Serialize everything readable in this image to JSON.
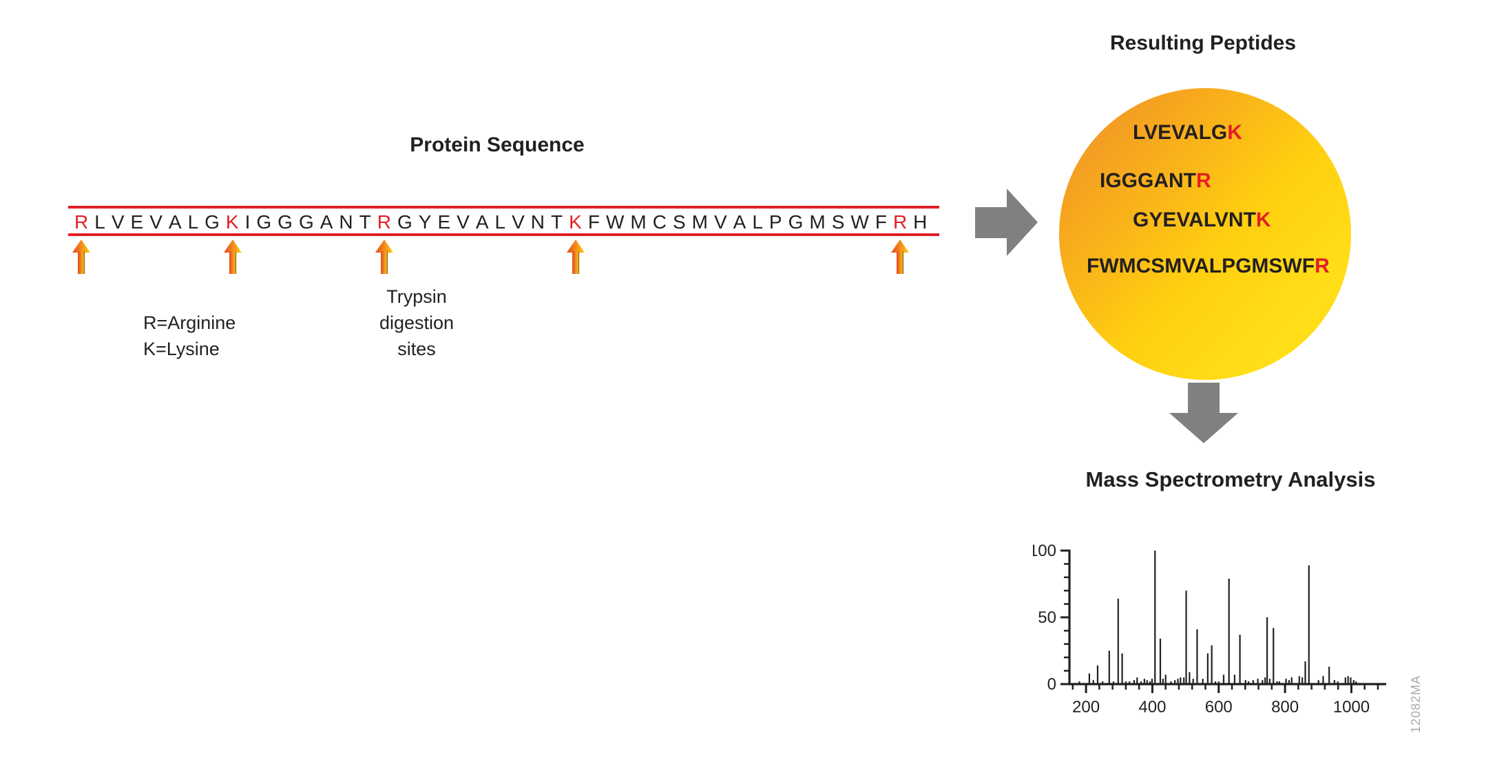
{
  "protein_section": {
    "title": "Protein Sequence",
    "sequence": "RLVEVALGKIGGGANTRGYEVALVNTKFWMCSMVALPGMSWFRH",
    "cleavage_positions": [
      0,
      8,
      16,
      26,
      42
    ],
    "legend": {
      "line1": "R=Arginine",
      "line2": "K=Lysine"
    },
    "trypsin_label": {
      "line1": "Trypsin",
      "line2": "digestion",
      "line3": "sites"
    }
  },
  "peptides_section": {
    "title": "Resulting Peptides",
    "peptides": [
      {
        "body": "LVEVALG",
        "tail": "K"
      },
      {
        "body": "IGGGANT",
        "tail": "R"
      },
      {
        "body": "GYEVALVNT",
        "tail": "K"
      },
      {
        "body": "FWMCSMVALPGMSWF",
        "tail": "R"
      }
    ]
  },
  "mass_spec_section": {
    "title": "Mass Spectrometry Analysis",
    "watermark": "12082MA"
  },
  "colors": {
    "red": "#E31E25",
    "text_black": "#231F20",
    "gray_arrow": "#808080",
    "circle_orange": "#EC8D2F",
    "circle_yellow": "#FFDE17",
    "cleave_arrow_dark": "#E2491F",
    "cleave_arrow_light": "#FFD008",
    "watermark_gray": "#A8AAAD"
  },
  "chart_data": {
    "type": "bar",
    "title": "",
    "xlabel": "",
    "ylabel": "",
    "grid": false,
    "xlim": [
      150,
      1105
    ],
    "ylim": [
      0,
      100
    ],
    "x_major_ticks": [
      200,
      400,
      600,
      800,
      1000
    ],
    "x_minor_step": 40,
    "y_major_ticks": [
      0,
      50,
      100
    ],
    "y_minor_step": 10,
    "peaks": [
      [
        180,
        2
      ],
      [
        210,
        8
      ],
      [
        222,
        3
      ],
      [
        235,
        14
      ],
      [
        250,
        2
      ],
      [
        270,
        25
      ],
      [
        283,
        2
      ],
      [
        297,
        64
      ],
      [
        309,
        23
      ],
      [
        320,
        2
      ],
      [
        331,
        2
      ],
      [
        345,
        3
      ],
      [
        354,
        5
      ],
      [
        366,
        2
      ],
      [
        376,
        4
      ],
      [
        384,
        3
      ],
      [
        393,
        2
      ],
      [
        399,
        4
      ],
      [
        408,
        100
      ],
      [
        424,
        34
      ],
      [
        432,
        4
      ],
      [
        440,
        7
      ],
      [
        456,
        2
      ],
      [
        468,
        3
      ],
      [
        477,
        4
      ],
      [
        485,
        5
      ],
      [
        495,
        5
      ],
      [
        502,
        70
      ],
      [
        512,
        9
      ],
      [
        523,
        4
      ],
      [
        535,
        41
      ],
      [
        552,
        4
      ],
      [
        567,
        23
      ],
      [
        579,
        29
      ],
      [
        590,
        2
      ],
      [
        600,
        2
      ],
      [
        615,
        7
      ],
      [
        631,
        79
      ],
      [
        648,
        7
      ],
      [
        664,
        37
      ],
      [
        681,
        3
      ],
      [
        690,
        2
      ],
      [
        704,
        3
      ],
      [
        718,
        4
      ],
      [
        732,
        3
      ],
      [
        740,
        5
      ],
      [
        746,
        50
      ],
      [
        754,
        4
      ],
      [
        765,
        42
      ],
      [
        776,
        2
      ],
      [
        783,
        2
      ],
      [
        803,
        4
      ],
      [
        812,
        3
      ],
      [
        820,
        5
      ],
      [
        843,
        6
      ],
      [
        852,
        5
      ],
      [
        861,
        17
      ],
      [
        872,
        89
      ],
      [
        901,
        3
      ],
      [
        915,
        6
      ],
      [
        933,
        13
      ],
      [
        949,
        3
      ],
      [
        959,
        2
      ],
      [
        982,
        5
      ],
      [
        990,
        6
      ],
      [
        998,
        5
      ],
      [
        1007,
        3
      ],
      [
        1014,
        2
      ]
    ]
  }
}
